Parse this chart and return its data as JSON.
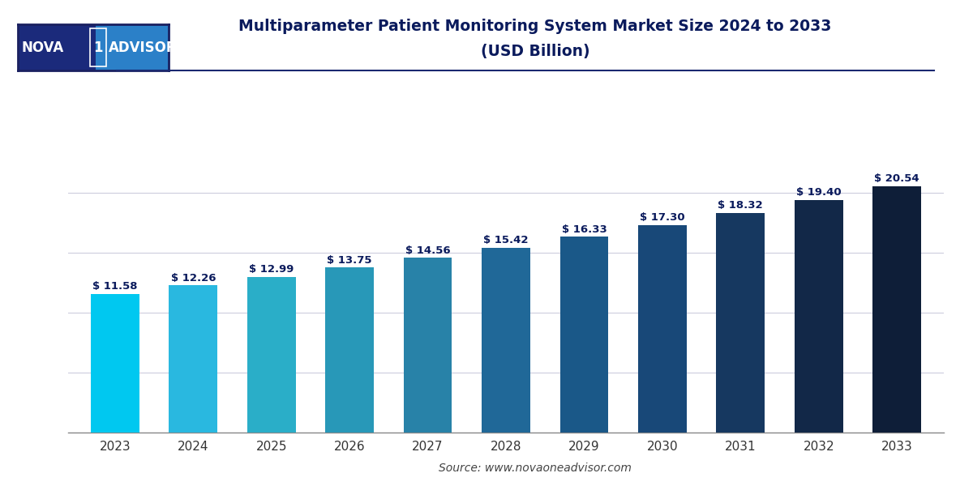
{
  "years": [
    "2023",
    "2024",
    "2025",
    "2026",
    "2027",
    "2028",
    "2029",
    "2030",
    "2031",
    "2032",
    "2033"
  ],
  "values": [
    11.58,
    12.26,
    12.99,
    13.75,
    14.56,
    15.42,
    16.33,
    17.3,
    18.32,
    19.4,
    20.54
  ],
  "bar_colors": [
    "#00C8F0",
    "#29B8E0",
    "#2AAEC8",
    "#2898B8",
    "#2882A8",
    "#206898",
    "#1A5888",
    "#184878",
    "#163860",
    "#122848",
    "#0E1E38"
  ],
  "title_line1": "Multiparameter Patient Monitoring System Market Size 2024 to 2033",
  "title_line2": "(USD Billion)",
  "source": "Source: www.novaoneadvisor.com",
  "bg_color": "#FFFFFF",
  "plot_bg_color": "#FFFFFF",
  "grid_color": "#CCCCDD",
  "bar_label_color": "#0A1A5C",
  "xtick_color": "#333333",
  "title_color": "#0A1A5C",
  "logo_dark": "#1B2A7B",
  "logo_light": "#2B80C8",
  "line_color": "#1A2870",
  "ylim": [
    0,
    23.5
  ],
  "figsize": [
    12,
    6
  ]
}
